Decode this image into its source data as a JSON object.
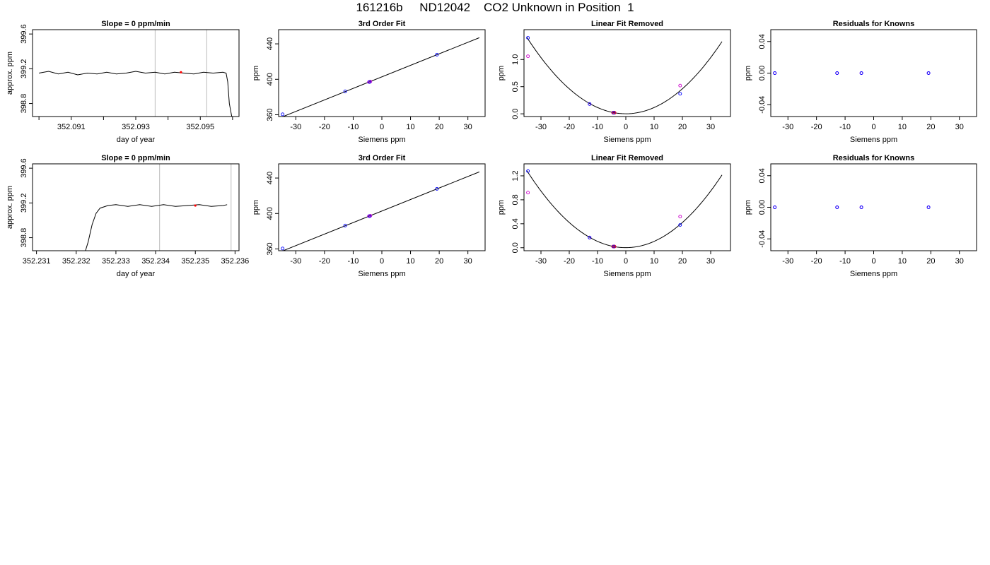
{
  "page": {
    "title": "161216b     ND12042    CO2 Unknown in Position  1"
  },
  "colors": {
    "trace": "#000000",
    "marker": "#ff0000",
    "known_points": "#0000ff",
    "unknown_points": "#cc00cc",
    "vline": "#bbbbbb"
  },
  "chart_data": [
    {
      "type": "line",
      "title": "Slope =  0  ppm/min",
      "xlabel": "day of year",
      "ylabel": "approx. ppm",
      "xlim": [
        352.0898,
        352.0962
      ],
      "ylim": [
        398.65,
        399.65
      ],
      "xticks": [
        352.09,
        352.091,
        352.092,
        352.093,
        352.094,
        352.095,
        352.096
      ],
      "xtick_labels": [
        "",
        "352.091",
        "",
        "352.093",
        "",
        "352.095",
        ""
      ],
      "yticks": [
        398.8,
        399.2,
        399.6
      ],
      "ytick_labels": [
        "398.8",
        "399.2",
        "399.6"
      ],
      "vlines": [
        352.0936,
        352.0952
      ],
      "series": [
        {
          "x": [
            352.09,
            352.0903,
            352.0906,
            352.0909,
            352.0912,
            352.0915,
            352.0918,
            352.0921,
            352.0924,
            352.0927,
            352.093,
            352.0933,
            352.0936,
            352.0939,
            352.0942,
            352.0945,
            352.0948,
            352.0951,
            352.0954,
            352.0957,
            352.0958,
            352.09585,
            352.0959,
            352.09595,
            352.096
          ],
          "y": [
            399.15,
            399.17,
            399.14,
            399.16,
            399.13,
            399.15,
            399.14,
            399.16,
            399.14,
            399.15,
            399.17,
            399.15,
            399.16,
            399.14,
            399.16,
            399.15,
            399.14,
            399.16,
            399.15,
            399.16,
            399.15,
            399.05,
            398.8,
            398.7,
            398.6
          ]
        }
      ],
      "marker": {
        "x": 352.0944,
        "y": 399.16
      }
    },
    {
      "type": "scatter",
      "title": "3rd Order Fit",
      "xlabel": "Siemens ppm",
      "ylabel": "ppm",
      "xlim": [
        -36,
        36
      ],
      "ylim": [
        358,
        456
      ],
      "xticks": [
        -30,
        -20,
        -10,
        0,
        10,
        20,
        30
      ],
      "xtick_labels": [
        "-30",
        "-20",
        "-10",
        "0",
        "10",
        "20",
        "30"
      ],
      "yticks": [
        360,
        400,
        440
      ],
      "ytick_labels": [
        "360",
        "400",
        "440"
      ],
      "fit": {
        "a": 402.75,
        "b": 1.3
      },
      "fit_range": [
        -35,
        34
      ],
      "known_points": {
        "x": [
          -34.6,
          -12.8,
          -4.3,
          19.2
        ],
        "y": [
          360.5,
          386.4,
          396.9,
          427.8
        ]
      },
      "unknown_points": {
        "x": [
          -4.5,
          -4.0
        ],
        "y": [
          396.9,
          397.5
        ]
      }
    },
    {
      "type": "scatter",
      "title": "Linear Fit Removed",
      "xlabel": "Siemens ppm",
      "ylabel": "ppm",
      "xlim": [
        -36,
        37
      ],
      "ylim": [
        -0.05,
        1.55
      ],
      "xticks": [
        -30,
        -20,
        -10,
        0,
        10,
        20,
        30
      ],
      "xtick_labels": [
        "-30",
        "-20",
        "-10",
        "0",
        "10",
        "20",
        "30"
      ],
      "yticks": [
        0.0,
        0.5,
        1.0
      ],
      "ytick_labels": [
        "0.0",
        "0.5",
        "1.0"
      ],
      "curve": {
        "a": 0.001,
        "b": 0.0,
        "c": 0.00115
      },
      "curve_range": [
        -35,
        34
      ],
      "known_points": {
        "x": [
          -34.6,
          -12.8,
          -4.3,
          19.2
        ],
        "y": [
          1.4,
          0.18,
          0.02,
          0.37
        ]
      },
      "unknown_points": {
        "x": [
          -34.6,
          -12.8,
          -4.0,
          19.2
        ],
        "y": [
          1.06,
          0.18,
          0.02,
          0.52
        ]
      },
      "red_points": {
        "x": [
          -4.5,
          -4.0
        ],
        "y": [
          0.02,
          0.02
        ]
      }
    },
    {
      "type": "scatter",
      "title": "Residuals for Knowns",
      "xlabel": "Siemens ppm",
      "ylabel": "ppm",
      "xlim": [
        -36,
        36
      ],
      "ylim": [
        -0.055,
        0.055
      ],
      "xticks": [
        -30,
        -20,
        -10,
        0,
        10,
        20,
        30
      ],
      "xtick_labels": [
        "-30",
        "-20",
        "-10",
        "0",
        "10",
        "20",
        "30"
      ],
      "yticks": [
        -0.04,
        0.0,
        0.04
      ],
      "ytick_labels": [
        "-0.04",
        "0.00",
        "0.04"
      ],
      "known_points": {
        "x": [
          -34.6,
          -12.8,
          -4.3,
          19.2
        ],
        "y": [
          0,
          0,
          0,
          0
        ]
      },
      "unknown_points": {
        "x": [
          -34.6,
          -12.8,
          -4.3,
          19.2
        ],
        "y": [
          0,
          0,
          0,
          0
        ]
      }
    },
    {
      "type": "line",
      "title": "Slope =  0  ppm/min",
      "xlabel": "day of year",
      "ylabel": "approx. ppm",
      "xlim": [
        352.2309,
        352.2361
      ],
      "ylim": [
        398.65,
        399.65
      ],
      "xticks": [
        352.231,
        352.232,
        352.233,
        352.234,
        352.235,
        352.236
      ],
      "xtick_labels": [
        "352.231",
        "352.232",
        "352.233",
        "352.234",
        "352.235",
        "352.236"
      ],
      "yticks": [
        398.8,
        399.2,
        399.6
      ],
      "ytick_labels": [
        "398.8",
        "399.2",
        "399.6"
      ],
      "vlines": [
        352.2341,
        352.2359
      ],
      "series": [
        {
          "x": [
            352.2322,
            352.2323,
            352.2324,
            352.2325,
            352.2326,
            352.2328,
            352.233,
            352.2333,
            352.2336,
            352.2339,
            352.2342,
            352.2345,
            352.2348,
            352.2351,
            352.2354,
            352.2357,
            352.2358
          ],
          "y": [
            398.6,
            398.75,
            398.95,
            399.08,
            399.14,
            399.17,
            399.18,
            399.16,
            399.18,
            399.16,
            399.18,
            399.16,
            399.17,
            399.18,
            399.16,
            399.17,
            399.18
          ]
        }
      ],
      "marker": {
        "x": 352.235,
        "y": 399.17
      }
    },
    {
      "type": "scatter",
      "title": "3rd Order Fit",
      "xlabel": "Siemens ppm",
      "ylabel": "ppm",
      "xlim": [
        -36,
        36
      ],
      "ylim": [
        358,
        456
      ],
      "xticks": [
        -30,
        -20,
        -10,
        0,
        10,
        20,
        30
      ],
      "xtick_labels": [
        "-30",
        "-20",
        "-10",
        "0",
        "10",
        "20",
        "30"
      ],
      "yticks": [
        360,
        400,
        440
      ],
      "ytick_labels": [
        "360",
        "400",
        "440"
      ],
      "fit": {
        "a": 402.75,
        "b": 1.3
      },
      "fit_range": [
        -35,
        34
      ],
      "known_points": {
        "x": [
          -34.6,
          -12.8,
          -4.3,
          19.2
        ],
        "y": [
          360.5,
          386.4,
          396.9,
          427.8
        ]
      },
      "unknown_points": {
        "x": [
          -4.5,
          -4.0
        ],
        "y": [
          397.0,
          397.5
        ]
      }
    },
    {
      "type": "scatter",
      "title": "Linear Fit Removed",
      "xlabel": "Siemens ppm",
      "ylabel": "ppm",
      "xlim": [
        -36,
        37
      ],
      "ylim": [
        -0.05,
        1.4
      ],
      "xticks": [
        -30,
        -20,
        -10,
        0,
        10,
        20,
        30
      ],
      "xtick_labels": [
        "-30",
        "-20",
        "-10",
        "0",
        "10",
        "20",
        "30"
      ],
      "yticks": [
        0.0,
        0.4,
        0.8,
        1.2
      ],
      "ytick_labels": [
        "0.0",
        "0.4",
        "0.8",
        "1.2"
      ],
      "curve": {
        "a": 0.001,
        "b": 0.0,
        "c": 0.00105
      },
      "curve_range": [
        -35,
        34
      ],
      "known_points": {
        "x": [
          -34.6,
          -12.8,
          -4.3,
          19.2
        ],
        "y": [
          1.28,
          0.17,
          0.02,
          0.38
        ]
      },
      "unknown_points": {
        "x": [
          -34.6,
          -12.8,
          -4.0,
          19.2
        ],
        "y": [
          0.92,
          0.17,
          0.02,
          0.52
        ]
      },
      "red_points": {
        "x": [
          -4.5,
          -4.0
        ],
        "y": [
          0.02,
          0.02
        ]
      }
    },
    {
      "type": "scatter",
      "title": "Residuals for Knowns",
      "xlabel": "Siemens ppm",
      "ylabel": "ppm",
      "xlim": [
        -36,
        36
      ],
      "ylim": [
        -0.055,
        0.055
      ],
      "xticks": [
        -30,
        -20,
        -10,
        0,
        10,
        20,
        30
      ],
      "xtick_labels": [
        "-30",
        "-20",
        "-10",
        "0",
        "10",
        "20",
        "30"
      ],
      "yticks": [
        -0.04,
        0.0,
        0.04
      ],
      "ytick_labels": [
        "-0.04",
        "0.00",
        "0.04"
      ],
      "known_points": {
        "x": [
          -34.6,
          -12.8,
          -4.3,
          19.2
        ],
        "y": [
          0,
          0,
          0,
          0
        ]
      },
      "unknown_points": {
        "x": [
          -34.6,
          -12.8,
          -4.3,
          19.2
        ],
        "y": [
          0,
          0,
          0,
          0
        ]
      }
    }
  ]
}
